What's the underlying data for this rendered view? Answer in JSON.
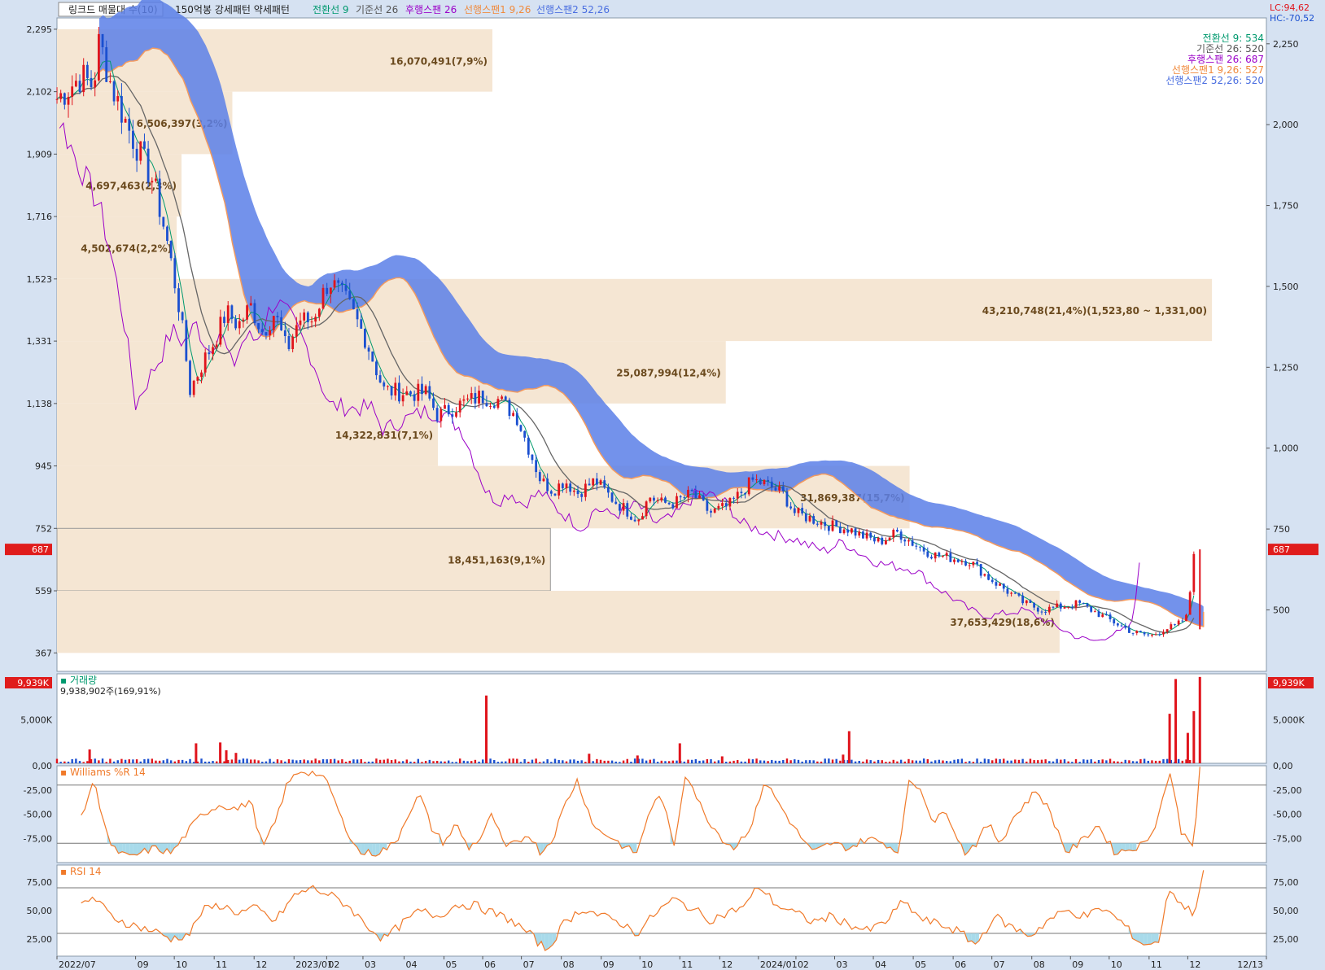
{
  "header": {
    "items": [
      {
        "text": "링크드 매물대 수(10)",
        "color": "#222222"
      },
      {
        "text": "150억봉 강세패턴  약세패턴",
        "color": "#222222"
      },
      {
        "text": "전환선 9",
        "color": "#00996e"
      },
      {
        "text": "기준선 26",
        "color": "#555555"
      },
      {
        "text": "후행스팬 26",
        "color": "#9b00c8"
      },
      {
        "text": "선행스팬1 9,26",
        "color": "#f08a3c"
      },
      {
        "text": "선행스팬2 52,26",
        "color": "#4a6ee0"
      }
    ],
    "lc": "LC:94,62",
    "hc": "HC:-70,52"
  },
  "legend_right": [
    {
      "text": "전환선 9: 534",
      "color": "#00996e"
    },
    {
      "text": "기준선 26: 520",
      "color": "#555555"
    },
    {
      "text": "후행스팬 26: 687",
      "color": "#9b00c8"
    },
    {
      "text": "선행스팬1 9,26: 527",
      "color": "#f08a3c"
    },
    {
      "text": "선행스팬2 52,26: 520",
      "color": "#4a6ee0"
    }
  ],
  "colors": {
    "up": "#e0141c",
    "down": "#1a4fd0",
    "cloud_bear": "#5b7fe8",
    "cloud_bull": "#f39a5e",
    "volume_profile": "#f5e6d3",
    "profile_text": "#6b4a1e",
    "osc": "#f07a2a",
    "osc_fill": "#9fd6e8",
    "current_marker": "#e01c1c"
  },
  "chart_data": [
    {
      "type": "candlestick",
      "panel": "price",
      "left_axis_ticks": [
        "2,295",
        "2,102",
        "1,909",
        "1,716",
        "1,523",
        "1,331",
        "1,138",
        "945",
        "752",
        "559",
        "367"
      ],
      "left_axis_values": [
        2295,
        2102,
        1909,
        1716,
        1523,
        1331,
        1138,
        945,
        752,
        559,
        367
      ],
      "right_axis_ticks": [
        "2,250",
        "2,000",
        "1,750",
        "1,500",
        "1,250",
        "1,000",
        "750",
        "500"
      ],
      "right_axis_values": [
        2250,
        2000,
        1750,
        1500,
        1250,
        1000,
        750,
        500
      ],
      "ylim": [
        310,
        2330
      ],
      "current_price_label": "687",
      "current_price": 687,
      "x_ticks": [
        {
          "label": "2022/07",
          "t": 0.0
        },
        {
          "label": "09",
          "t": 0.065
        },
        {
          "label": "10",
          "t": 0.097
        },
        {
          "label": "11",
          "t": 0.13
        },
        {
          "label": "12",
          "t": 0.163
        },
        {
          "label": "2023/01",
          "t": 0.196
        },
        {
          "label": "02",
          "t": 0.223
        },
        {
          "label": "03",
          "t": 0.253
        },
        {
          "label": "04",
          "t": 0.287
        },
        {
          "label": "05",
          "t": 0.32
        },
        {
          "label": "06",
          "t": 0.352
        },
        {
          "label": "07",
          "t": 0.384
        },
        {
          "label": "08",
          "t": 0.417
        },
        {
          "label": "09",
          "t": 0.45
        },
        {
          "label": "10",
          "t": 0.482
        },
        {
          "label": "11",
          "t": 0.515
        },
        {
          "label": "12",
          "t": 0.548
        },
        {
          "label": "2024/01",
          "t": 0.58
        },
        {
          "label": "02",
          "t": 0.611
        },
        {
          "label": "03",
          "t": 0.643
        },
        {
          "label": "04",
          "t": 0.675
        },
        {
          "label": "05",
          "t": 0.708
        },
        {
          "label": "06",
          "t": 0.741
        },
        {
          "label": "07",
          "t": 0.773
        },
        {
          "label": "08",
          "t": 0.806
        },
        {
          "label": "09",
          "t": 0.838
        },
        {
          "label": "10",
          "t": 0.87
        },
        {
          "label": "11",
          "t": 0.903
        },
        {
          "label": "12",
          "t": 0.935
        },
        {
          "label": "12/13",
          "t": 1.0
        }
      ],
      "price_keypoints": [
        [
          0.0,
          2080
        ],
        [
          0.02,
          2150
        ],
        [
          0.03,
          2120
        ],
        [
          0.035,
          2260
        ],
        [
          0.045,
          2120
        ],
        [
          0.06,
          1980
        ],
        [
          0.08,
          1820
        ],
        [
          0.09,
          1660
        ],
        [
          0.1,
          1460
        ],
        [
          0.105,
          1330
        ],
        [
          0.11,
          1180
        ],
        [
          0.12,
          1260
        ],
        [
          0.13,
          1330
        ],
        [
          0.14,
          1420
        ],
        [
          0.15,
          1380
        ],
        [
          0.16,
          1440
        ],
        [
          0.17,
          1360
        ],
        [
          0.18,
          1420
        ],
        [
          0.19,
          1300
        ],
        [
          0.2,
          1400
        ],
        [
          0.21,
          1390
        ],
        [
          0.225,
          1520
        ],
        [
          0.24,
          1450
        ],
        [
          0.255,
          1340
        ],
        [
          0.27,
          1180
        ],
        [
          0.29,
          1170
        ],
        [
          0.305,
          1170
        ],
        [
          0.315,
          1100
        ],
        [
          0.33,
          1130
        ],
        [
          0.35,
          1160
        ],
        [
          0.365,
          1150
        ],
        [
          0.38,
          1100
        ],
        [
          0.39,
          1000
        ],
        [
          0.4,
          900
        ],
        [
          0.41,
          870
        ],
        [
          0.42,
          900
        ],
        [
          0.43,
          860
        ],
        [
          0.445,
          900
        ],
        [
          0.46,
          840
        ],
        [
          0.47,
          810
        ],
        [
          0.48,
          780
        ],
        [
          0.49,
          850
        ],
        [
          0.5,
          830
        ],
        [
          0.51,
          830
        ],
        [
          0.525,
          860
        ],
        [
          0.54,
          800
        ],
        [
          0.555,
          820
        ],
        [
          0.565,
          860
        ],
        [
          0.575,
          900
        ],
        [
          0.585,
          890
        ],
        [
          0.6,
          860
        ],
        [
          0.61,
          800
        ],
        [
          0.625,
          780
        ],
        [
          0.64,
          760
        ],
        [
          0.655,
          750
        ],
        [
          0.665,
          730
        ],
        [
          0.68,
          710
        ],
        [
          0.695,
          740
        ],
        [
          0.71,
          700
        ],
        [
          0.725,
          670
        ],
        [
          0.74,
          660
        ],
        [
          0.755,
          650
        ],
        [
          0.77,
          600
        ],
        [
          0.785,
          560
        ],
        [
          0.8,
          520
        ],
        [
          0.815,
          500
        ],
        [
          0.83,
          510
        ],
        [
          0.845,
          520
        ],
        [
          0.86,
          490
        ],
        [
          0.875,
          460
        ],
        [
          0.89,
          430
        ],
        [
          0.905,
          420
        ],
        [
          0.915,
          440
        ],
        [
          0.925,
          450
        ],
        [
          0.935,
          480
        ],
        [
          0.94,
          687
        ]
      ],
      "volume_profile": [
        {
          "label": "16,070,491(7,9%)",
          "top": 2295,
          "bottom": 2102,
          "width": 0.36
        },
        {
          "label": "6,506,397(3,2%)",
          "top": 2102,
          "bottom": 1909,
          "width": 0.145
        },
        {
          "label": "4,697,463(2,3%)",
          "top": 1909,
          "bottom": 1716,
          "width": 0.103
        },
        {
          "label": "4,502,674(2,2%)",
          "top": 1716,
          "bottom": 1523,
          "width": 0.099
        },
        {
          "label": "43,210,748(21,4%)(1,523,80 ~ 1,331,00)",
          "top": 1523,
          "bottom": 1331,
          "width": 0.955
        },
        {
          "label": "25,087,994(12,4%)",
          "top": 1331,
          "bottom": 1138,
          "width": 0.553
        },
        {
          "label": "14,322,831(7,1%)",
          "top": 1138,
          "bottom": 945,
          "width": 0.315
        },
        {
          "label": "31,869,387(15,7%)",
          "top": 945,
          "bottom": 752,
          "width": 0.705
        },
        {
          "label": "18,451,163(9,1%)",
          "top": 752,
          "bottom": 559,
          "width": 0.408
        },
        {
          "label": "37,653,429(18,6%)",
          "top": 559,
          "bottom": 367,
          "width": 0.829
        }
      ]
    },
    {
      "type": "bar",
      "panel": "volume",
      "title": "거래량",
      "value_label": "9,938,902주(169,91%)",
      "left_ticks": [
        "5,000K"
      ],
      "right_ticks": [
        "5,000K"
      ],
      "tick_values": [
        5000
      ],
      "current_label": "9,939K",
      "ylim": [
        0,
        10300
      ],
      "spikes": [
        [
          0.027,
          1600
        ],
        [
          0.115,
          2300
        ],
        [
          0.135,
          2400
        ],
        [
          0.14,
          1500
        ],
        [
          0.148,
          1200
        ],
        [
          0.355,
          7800
        ],
        [
          0.44,
          1100
        ],
        [
          0.48,
          900
        ],
        [
          0.515,
          2300
        ],
        [
          0.55,
          800
        ],
        [
          0.65,
          1000
        ],
        [
          0.655,
          3700
        ],
        [
          0.92,
          5700
        ],
        [
          0.925,
          9700
        ],
        [
          0.935,
          3500
        ],
        [
          0.945,
          9939
        ],
        [
          0.94,
          6000
        ]
      ]
    },
    {
      "type": "line",
      "panel": "williams",
      "title": "Williams %R 14",
      "left_ticks": [
        "0,00",
        "-25,00",
        "-50,00",
        "-75,00"
      ],
      "right_ticks": [
        "0,00",
        "-25,00",
        "-50,00",
        "-75,00"
      ],
      "tick_values": [
        0,
        -25,
        -50,
        -75
      ],
      "ylim": [
        -100,
        0
      ],
      "bands": [
        -20,
        -80
      ],
      "keypoints": [
        [
          0.02,
          -55
        ],
        [
          0.03,
          -15
        ],
        [
          0.045,
          -85
        ],
        [
          0.06,
          -95
        ],
        [
          0.08,
          -85
        ],
        [
          0.095,
          -90
        ],
        [
          0.11,
          -65
        ],
        [
          0.12,
          -50
        ],
        [
          0.135,
          -40
        ],
        [
          0.15,
          -45
        ],
        [
          0.16,
          -35
        ],
        [
          0.17,
          -85
        ],
        [
          0.18,
          -60
        ],
        [
          0.19,
          -20
        ],
        [
          0.2,
          -5
        ],
        [
          0.215,
          -8
        ],
        [
          0.225,
          -20
        ],
        [
          0.235,
          -55
        ],
        [
          0.25,
          -90
        ],
        [
          0.265,
          -90
        ],
        [
          0.28,
          -80
        ],
        [
          0.29,
          -50
        ],
        [
          0.3,
          -30
        ],
        [
          0.31,
          -65
        ],
        [
          0.32,
          -80
        ],
        [
          0.33,
          -60
        ],
        [
          0.34,
          -85
        ],
        [
          0.35,
          -75
        ],
        [
          0.36,
          -50
        ],
        [
          0.37,
          -85
        ],
        [
          0.38,
          -80
        ],
        [
          0.39,
          -70
        ],
        [
          0.4,
          -90
        ],
        [
          0.41,
          -75
        ],
        [
          0.42,
          -40
        ],
        [
          0.43,
          -15
        ],
        [
          0.445,
          -65
        ],
        [
          0.46,
          -75
        ],
        [
          0.47,
          -85
        ],
        [
          0.48,
          -90
        ],
        [
          0.49,
          -45
        ],
        [
          0.5,
          -30
        ],
        [
          0.51,
          -85
        ],
        [
          0.52,
          -5
        ],
        [
          0.535,
          -50
        ],
        [
          0.55,
          -75
        ],
        [
          0.56,
          -85
        ],
        [
          0.575,
          -60
        ],
        [
          0.585,
          -15
        ],
        [
          0.595,
          -35
        ],
        [
          0.61,
          -65
        ],
        [
          0.625,
          -90
        ],
        [
          0.64,
          -80
        ],
        [
          0.655,
          -85
        ],
        [
          0.67,
          -75
        ],
        [
          0.685,
          -80
        ],
        [
          0.695,
          -90
        ],
        [
          0.705,
          -15
        ],
        [
          0.715,
          -25
        ],
        [
          0.725,
          -60
        ],
        [
          0.735,
          -45
        ],
        [
          0.75,
          -90
        ],
        [
          0.76,
          -80
        ],
        [
          0.77,
          -60
        ],
        [
          0.78,
          -80
        ],
        [
          0.79,
          -55
        ],
        [
          0.8,
          -40
        ],
        [
          0.81,
          -25
        ],
        [
          0.82,
          -45
        ],
        [
          0.835,
          -90
        ],
        [
          0.85,
          -75
        ],
        [
          0.86,
          -60
        ],
        [
          0.875,
          -90
        ],
        [
          0.89,
          -85
        ],
        [
          0.9,
          -80
        ],
        [
          0.91,
          -55
        ],
        [
          0.92,
          -5
        ],
        [
          0.93,
          -70
        ],
        [
          0.94,
          -80
        ],
        [
          0.945,
          -5
        ]
      ]
    },
    {
      "type": "line",
      "panel": "rsi",
      "title": "RSI 14",
      "left_ticks": [
        "75,00",
        "50,00",
        "25,00"
      ],
      "right_ticks": [
        "75,00",
        "50,00",
        "25,00"
      ],
      "tick_values": [
        75,
        50,
        25
      ],
      "ylim": [
        10,
        90
      ],
      "bands": [
        70,
        30
      ],
      "keypoints": [
        [
          0.02,
          55
        ],
        [
          0.03,
          62
        ],
        [
          0.045,
          45
        ],
        [
          0.06,
          38
        ],
        [
          0.08,
          32
        ],
        [
          0.095,
          25
        ],
        [
          0.11,
          30
        ],
        [
          0.12,
          50
        ],
        [
          0.135,
          55
        ],
        [
          0.15,
          48
        ],
        [
          0.165,
          52
        ],
        [
          0.18,
          40
        ],
        [
          0.195,
          62
        ],
        [
          0.21,
          70
        ],
        [
          0.225,
          64
        ],
        [
          0.24,
          55
        ],
        [
          0.255,
          38
        ],
        [
          0.27,
          25
        ],
        [
          0.285,
          38
        ],
        [
          0.3,
          50
        ],
        [
          0.315,
          45
        ],
        [
          0.33,
          55
        ],
        [
          0.345,
          55
        ],
        [
          0.36,
          48
        ],
        [
          0.375,
          42
        ],
        [
          0.39,
          30
        ],
        [
          0.405,
          15
        ],
        [
          0.42,
          40
        ],
        [
          0.435,
          52
        ],
        [
          0.45,
          45
        ],
        [
          0.465,
          40
        ],
        [
          0.48,
          30
        ],
        [
          0.495,
          48
        ],
        [
          0.51,
          60
        ],
        [
          0.525,
          52
        ],
        [
          0.54,
          42
        ],
        [
          0.555,
          48
        ],
        [
          0.57,
          55
        ],
        [
          0.58,
          72
        ],
        [
          0.595,
          55
        ],
        [
          0.61,
          48
        ],
        [
          0.625,
          40
        ],
        [
          0.64,
          45
        ],
        [
          0.655,
          38
        ],
        [
          0.67,
          32
        ],
        [
          0.685,
          40
        ],
        [
          0.7,
          58
        ],
        [
          0.715,
          42
        ],
        [
          0.73,
          38
        ],
        [
          0.745,
          32
        ],
        [
          0.76,
          20
        ],
        [
          0.775,
          45
        ],
        [
          0.79,
          35
        ],
        [
          0.805,
          28
        ],
        [
          0.82,
          42
        ],
        [
          0.835,
          50
        ],
        [
          0.85,
          45
        ],
        [
          0.865,
          52
        ],
        [
          0.88,
          40
        ],
        [
          0.895,
          22
        ],
        [
          0.91,
          20
        ],
        [
          0.92,
          70
        ],
        [
          0.93,
          55
        ],
        [
          0.94,
          48
        ],
        [
          0.948,
          82
        ]
      ]
    }
  ]
}
